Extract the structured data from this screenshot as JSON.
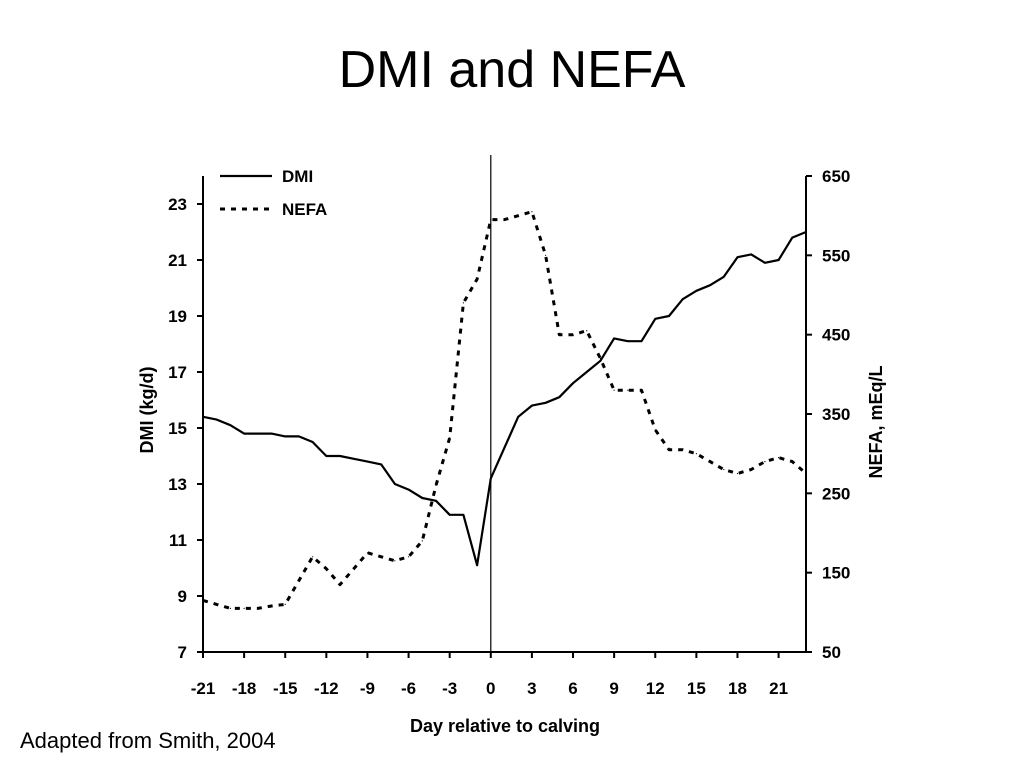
{
  "slide": {
    "title": "DMI and NEFA",
    "source_note": "Adapted from Smith, 2004"
  },
  "chart_data": {
    "type": "line",
    "xlabel": "Day relative to calving",
    "ylabel_left": "DMI (kg/d)",
    "ylabel_right": "NEFA, mEq/L",
    "xlim": [
      -21,
      23
    ],
    "ylim_left": [
      7,
      24
    ],
    "ylim_right": [
      50,
      650
    ],
    "x_ticks": [
      -21,
      -18,
      -15,
      -12,
      -9,
      -6,
      -3,
      0,
      3,
      6,
      9,
      12,
      15,
      18,
      21
    ],
    "y_ticks_left": [
      7,
      9,
      11,
      13,
      15,
      17,
      19,
      21,
      23
    ],
    "y_ticks_right": [
      50,
      150,
      250,
      350,
      450,
      550,
      650
    ],
    "calving_day": 0,
    "legend_position": "top-left",
    "grid": false,
    "series": [
      {
        "name": "DMI",
        "axis": "left",
        "style": "solid",
        "color": "#000000",
        "x": [
          -21,
          -20,
          -19,
          -18,
          -17,
          -16,
          -15,
          -14,
          -13,
          -12,
          -11,
          -10,
          -9,
          -8,
          -7,
          -6,
          -5,
          -4,
          -3,
          -2,
          -1,
          0,
          1,
          2,
          3,
          4,
          5,
          6,
          7,
          8,
          9,
          10,
          11,
          12,
          13,
          14,
          15,
          16,
          17,
          18,
          19,
          20,
          21,
          22,
          23
        ],
        "values": [
          15.4,
          15.3,
          15.1,
          14.8,
          14.8,
          14.8,
          14.7,
          14.7,
          14.5,
          14.0,
          14.0,
          13.9,
          13.8,
          13.7,
          13.0,
          12.8,
          12.5,
          12.4,
          11.9,
          11.9,
          10.1,
          13.2,
          14.3,
          15.4,
          15.8,
          15.9,
          16.1,
          16.6,
          17.0,
          17.4,
          18.2,
          18.1,
          18.1,
          18.9,
          19.0,
          19.6,
          19.9,
          20.1,
          20.4,
          21.1,
          21.2,
          20.9,
          21.0,
          21.8,
          22.0
        ]
      },
      {
        "name": "NEFA",
        "axis": "right",
        "style": "dotted",
        "color": "#000000",
        "x": [
          -21,
          -20,
          -19,
          -18,
          -17,
          -16,
          -15,
          -14,
          -13,
          -12,
          -11,
          -10,
          -9,
          -8,
          -7,
          -6,
          -5,
          -4,
          -3,
          -2,
          -1,
          0,
          1,
          2,
          3,
          4,
          5,
          6,
          7,
          8,
          9,
          10,
          11,
          12,
          13,
          14,
          15,
          16,
          17,
          18,
          19,
          20,
          21,
          22,
          23
        ],
        "values": [
          115,
          110,
          105,
          105,
          105,
          108,
          110,
          140,
          170,
          155,
          135,
          155,
          175,
          170,
          165,
          170,
          190,
          260,
          320,
          490,
          520,
          595,
          595,
          600,
          605,
          550,
          450,
          450,
          455,
          420,
          380,
          380,
          380,
          330,
          305,
          305,
          300,
          290,
          280,
          275,
          280,
          290,
          295,
          290,
          275
        ]
      }
    ]
  }
}
